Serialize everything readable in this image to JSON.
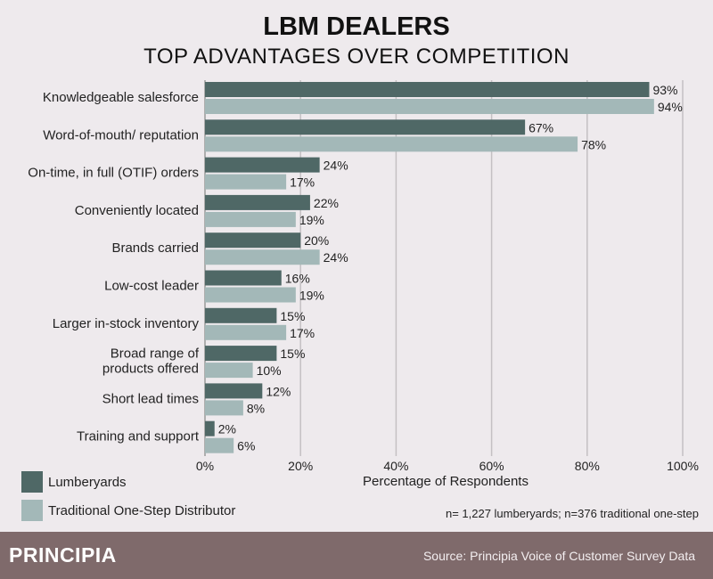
{
  "chart_data": {
    "type": "bar",
    "orientation": "horizontal",
    "title": "LBM DEALERS",
    "subtitle": "TOP ADVANTAGES OVER COMPETITION",
    "xlabel": "Percentage of Respondents",
    "ylabel": "",
    "xlim": [
      0,
      100
    ],
    "xticks": [
      "0%",
      "20%",
      "40%",
      "60%",
      "80%",
      "100%"
    ],
    "grid": true,
    "categories": [
      "Knowledgeable salesforce",
      "Word-of-mouth/ reputation",
      "On-time, in full (OTIF) orders",
      "Conveniently located",
      "Brands carried",
      "Low-cost leader",
      "Larger in-stock inventory",
      "Broad range of\nproducts offered",
      "Short lead times",
      "Training and support"
    ],
    "series": [
      {
        "name": "Lumberyards",
        "color": "#4f6866",
        "values": [
          93,
          67,
          24,
          22,
          20,
          16,
          15,
          15,
          12,
          2
        ]
      },
      {
        "name": "Traditional One-Step Distributor",
        "color": "#a3b8b8",
        "values": [
          94,
          78,
          17,
          19,
          24,
          19,
          17,
          10,
          8,
          6
        ]
      }
    ],
    "legend_position": "bottom-left",
    "note": "n= 1,227 lumberyards; n=376 traditional one-step"
  },
  "footer": {
    "logo": "PRINCIPIA",
    "source": "Source: Principia Voice of Customer Survey Data"
  }
}
